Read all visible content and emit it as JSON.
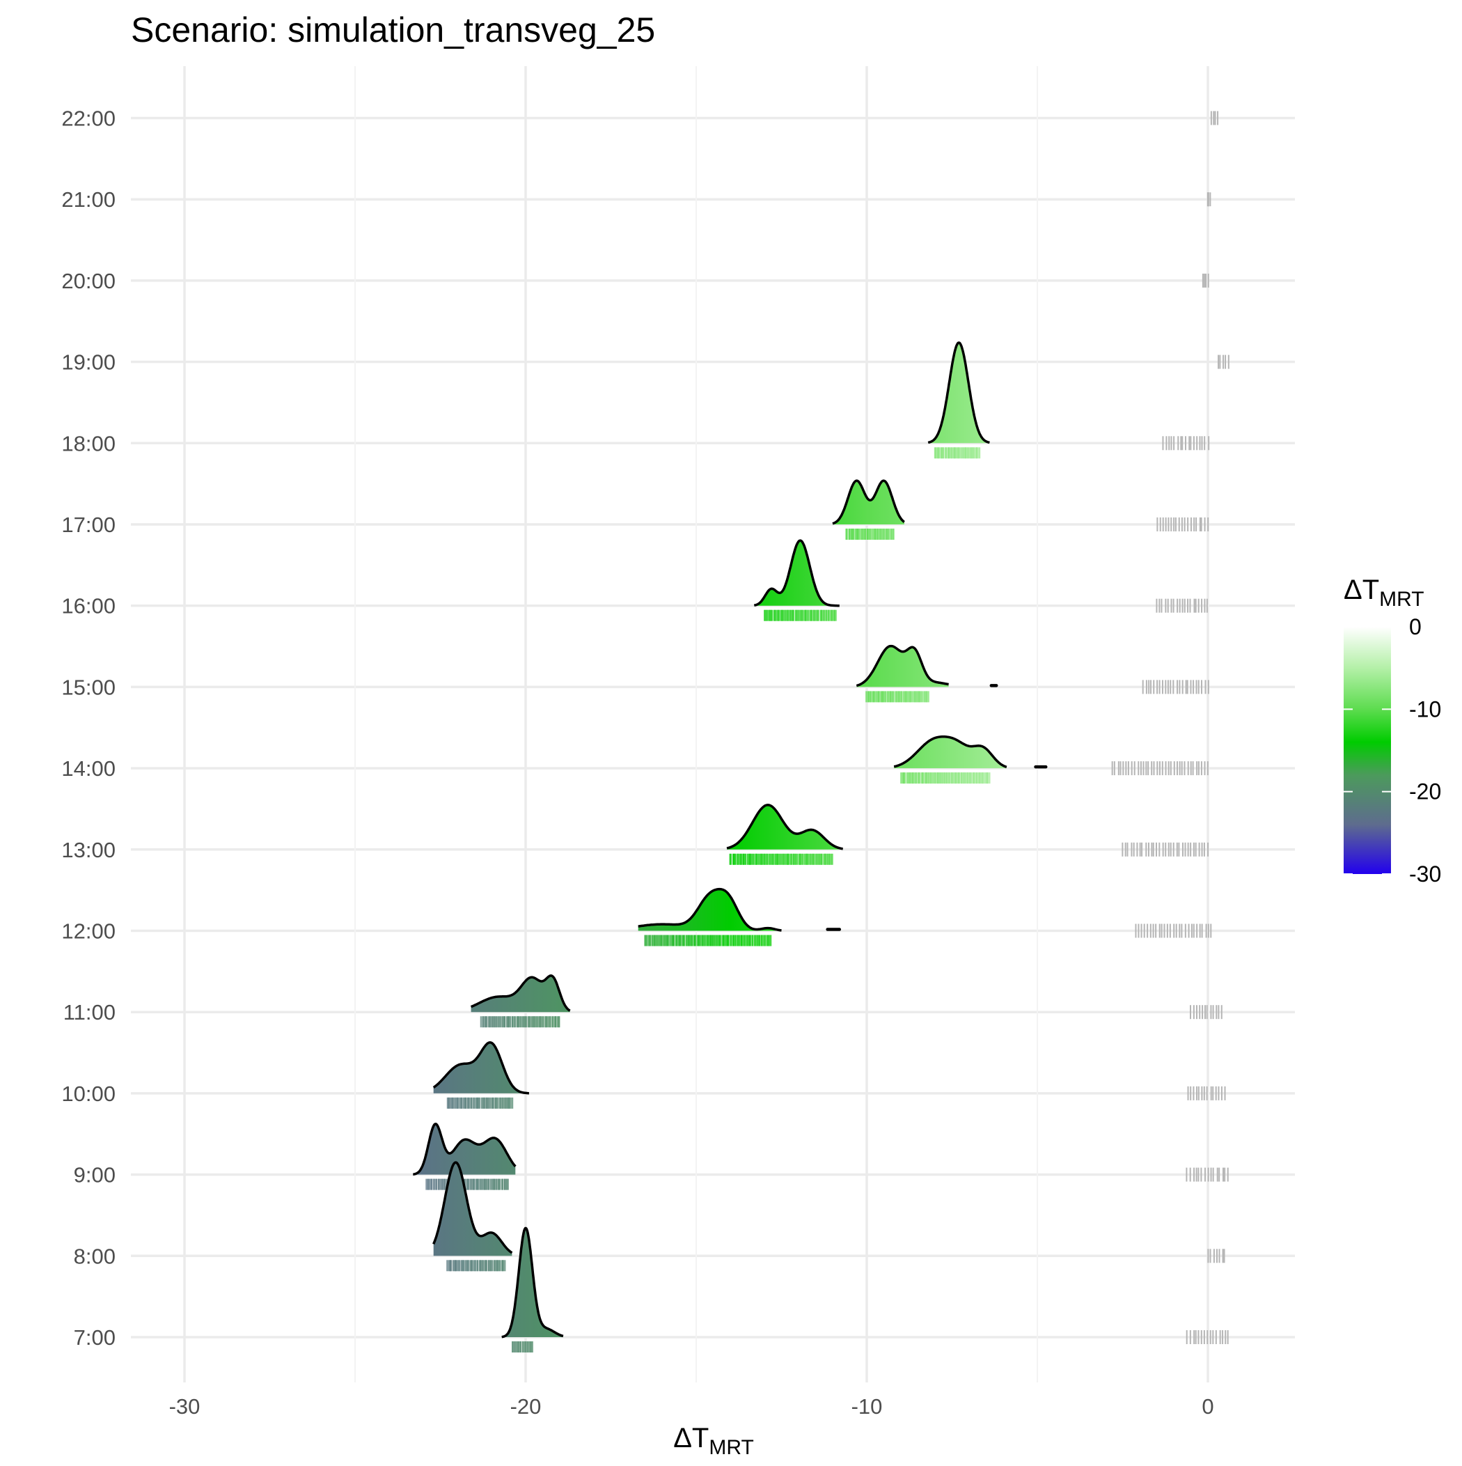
{
  "chart_data": {
    "type": "ridgeline",
    "title": "Scenario: simulation_transveg_25",
    "xlabel": {
      "main": "ΔT",
      "sub": "MRT"
    },
    "ylabel": "",
    "xlim": [
      -31.5,
      2.6
    ],
    "xticks": [
      -30,
      -20,
      -10,
      0
    ],
    "xtick_labels": [
      "-30",
      "-20",
      "-10",
      "0"
    ],
    "hours": [
      "7:00",
      "8:00",
      "9:00",
      "10:00",
      "11:00",
      "12:00",
      "13:00",
      "14:00",
      "15:00",
      "16:00",
      "17:00",
      "18:00",
      "19:00",
      "20:00",
      "21:00",
      "22:00"
    ],
    "grid": true,
    "legend": {
      "title": {
        "main": "ΔT",
        "sub": "MRT"
      },
      "position": "right",
      "ticks": [
        0,
        -10,
        -20,
        -30
      ],
      "tick_labels": [
        "0",
        "-10",
        "-20",
        "-30"
      ],
      "gradient": [
        {
          "value": 0,
          "color": "#ffffff"
        },
        {
          "value": -5,
          "color": "#b4f0a8"
        },
        {
          "value": -10,
          "color": "#5ddc4f"
        },
        {
          "value": -14,
          "color": "#00cc00"
        },
        {
          "value": -18,
          "color": "#4c9a5c"
        },
        {
          "value": -24,
          "color": "#5e6c8e"
        },
        {
          "value": -30,
          "color": "#2200ee"
        }
      ]
    },
    "series": [
      {
        "hour": "7:00",
        "range": [
          -20.7,
          -18.9
        ],
        "peaks": [
          [
            -20.0,
            0.2,
            2.0
          ],
          [
            -19.4,
            0.25,
            0.15
          ]
        ],
        "rug": [
          -20.4,
          -19.8
        ],
        "zero_rug": [
          -0.6,
          0.6
        ]
      },
      {
        "hour": "8:00",
        "range": [
          -22.7,
          -20.4
        ],
        "peaks": [
          [
            -22.05,
            0.32,
            1.72
          ],
          [
            -21.0,
            0.3,
            0.42
          ]
        ],
        "rug": [
          -22.3,
          -20.6
        ],
        "zero_rug": [
          0.0,
          0.5
        ]
      },
      {
        "hour": "9:00",
        "range": [
          -23.3,
          -20.3
        ],
        "peaks": [
          [
            -22.65,
            0.2,
            0.9
          ],
          [
            -21.8,
            0.35,
            0.62
          ],
          [
            -20.9,
            0.35,
            0.65
          ]
        ],
        "rug": [
          -22.9,
          -20.5
        ],
        "zero_rug": [
          -0.6,
          0.6
        ]
      },
      {
        "hour": "10:00",
        "range": [
          -22.7,
          -19.9
        ],
        "peaks": [
          [
            -21.9,
            0.45,
            0.52
          ],
          [
            -21.0,
            0.32,
            0.86
          ]
        ],
        "rug": [
          -22.3,
          -20.4
        ],
        "zero_rug": [
          -0.6,
          0.5
        ]
      },
      {
        "hour": "11:00",
        "range": [
          -21.6,
          -18.7
        ],
        "peaks": [
          [
            -20.8,
            0.55,
            0.28
          ],
          [
            -19.8,
            0.32,
            0.58
          ],
          [
            -19.2,
            0.2,
            0.55
          ]
        ],
        "rug": [
          -21.3,
          -19.0
        ],
        "zero_rug": [
          -0.5,
          0.4
        ]
      },
      {
        "hour": "12:00",
        "range": [
          -16.7,
          -12.5
        ],
        "peaks": [
          [
            -16.0,
            0.8,
            0.12
          ],
          [
            -14.6,
            0.35,
            0.58
          ],
          [
            -14.05,
            0.3,
            0.5
          ],
          [
            -12.9,
            0.2,
            0.05
          ]
        ],
        "extra": [
          -11.15,
          -10.8
        ],
        "rug": [
          -16.5,
          -12.8
        ],
        "zero_rug": [
          -2.1,
          0.1
        ]
      },
      {
        "hour": "13:00",
        "range": [
          -14.1,
          -10.7
        ],
        "peaks": [
          [
            -12.9,
            0.45,
            0.82
          ],
          [
            -11.6,
            0.35,
            0.35
          ]
        ],
        "rug": [
          -14.0,
          -11.0
        ],
        "zero_rug": [
          -2.5,
          0.0
        ]
      },
      {
        "hour": "14:00",
        "range": [
          -9.2,
          -5.9
        ],
        "peaks": [
          [
            -8.0,
            0.5,
            0.52
          ],
          [
            -7.3,
            0.35,
            0.28
          ],
          [
            -6.6,
            0.3,
            0.35
          ]
        ],
        "extra": [
          -5.05,
          -4.75
        ],
        "rug": [
          -9.0,
          -6.4
        ],
        "zero_rug": [
          -2.8,
          0.0
        ]
      },
      {
        "hour": "15:00",
        "range": [
          -10.3,
          -7.6
        ],
        "peaks": [
          [
            -9.3,
            0.38,
            0.75
          ],
          [
            -8.6,
            0.22,
            0.55
          ],
          [
            -8.0,
            0.4,
            0.08
          ]
        ],
        "extra": [
          -6.35,
          -6.2
        ],
        "rug": [
          -10.0,
          -8.2
        ],
        "zero_rug": [
          -1.9,
          0.0
        ]
      },
      {
        "hour": "16:00",
        "range": [
          -13.3,
          -10.8
        ],
        "peaks": [
          [
            -12.8,
            0.18,
            0.3
          ],
          [
            -11.95,
            0.28,
            1.2
          ]
        ],
        "rug": [
          -13.0,
          -10.9
        ],
        "zero_rug": [
          -1.5,
          0.0
        ]
      },
      {
        "hour": "17:00",
        "range": [
          -11.0,
          -8.9
        ],
        "peaks": [
          [
            -10.3,
            0.25,
            0.8
          ],
          [
            -9.5,
            0.25,
            0.8
          ]
        ],
        "rug": [
          -10.6,
          -9.2
        ],
        "zero_rug": [
          -1.5,
          0.0
        ]
      },
      {
        "hour": "18:00",
        "range": [
          -8.2,
          -6.4
        ],
        "peaks": [
          [
            -7.3,
            0.28,
            1.85
          ]
        ],
        "rug": [
          -8.0,
          -6.7
        ],
        "zero_rug": [
          -1.3,
          0.0
        ]
      },
      {
        "hour": "19:00",
        "range": [],
        "peaks": [],
        "rug": [],
        "zero_rug": [
          0.3,
          0.6
        ]
      },
      {
        "hour": "20:00",
        "range": [],
        "peaks": [],
        "rug": [],
        "zero_rug": [
          -0.15,
          0.0
        ]
      },
      {
        "hour": "21:00",
        "range": [],
        "peaks": [],
        "rug": [],
        "zero_rug": [
          0.0,
          0.05
        ]
      },
      {
        "hour": "22:00",
        "range": [],
        "peaks": [],
        "rug": [],
        "zero_rug": [
          0.1,
          0.3
        ]
      }
    ]
  }
}
